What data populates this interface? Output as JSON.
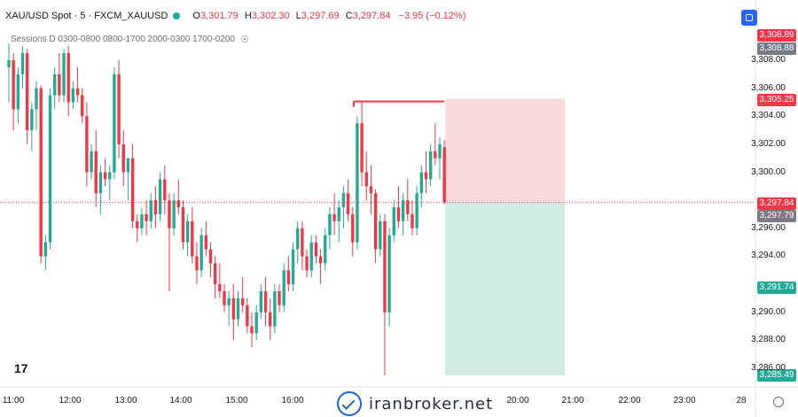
{
  "legend": {
    "symbol": "XAU/USD Spot · 5 · FXCM_XAUUSD",
    "o_label": "O",
    "o": "3,301.79",
    "h_label": "H",
    "h": "3,302.30",
    "l_label": "L",
    "l": "3,297.69",
    "c_label": "C",
    "c": "3,297.84",
    "change": "−3.95 (−0.12%)"
  },
  "sessions_label": "Sessions D 0300-0800 0800-1700 2000-0300 1700-0200",
  "watermark": "iranbroker.net",
  "tv_logo": "17",
  "colors": {
    "up": "#22ab94",
    "down": "#f23645",
    "stop_zone": "#f9d3d6",
    "target_zone": "#c9e8e1"
  },
  "price_tags": [
    {
      "value": "3,308.89",
      "color": "#f23645"
    },
    {
      "value": "3,308.88",
      "color": "#787b86"
    },
    {
      "value": "3,305.25",
      "color": "#f23645"
    },
    {
      "value": "3,297.84",
      "color": "#f23645"
    },
    {
      "value": "3,297.79",
      "color": "#787b86"
    },
    {
      "value": "3,291.74",
      "color": "#22ab94"
    },
    {
      "value": "3,285.49",
      "color": "#22ab94"
    }
  ],
  "chart_data": {
    "type": "candlestick",
    "y_ticks": [
      "3,308.00",
      "3,306.00",
      "3,304.00",
      "3,302.00",
      "3,300.00",
      "3,296.00",
      "3,294.00",
      "3,290.00",
      "3,288.00",
      "3,286.00"
    ],
    "y_tick_values": [
      3308,
      3306,
      3304,
      3302,
      3300,
      3296,
      3294,
      3290,
      3288,
      3286
    ],
    "x_ticks": [
      "11:00",
      "12:00",
      "13:00",
      "14:00",
      "15:00",
      "16:00",
      "20:00",
      "21:00",
      "22:00",
      "23:00",
      "28"
    ],
    "ylim": [
      3285,
      3310.5
    ],
    "current_price": 3297.84,
    "short_position": {
      "entry": 3297.84,
      "stop": 3305.25,
      "target": 3285.49,
      "stop_line": 3305.05
    },
    "candles": [
      [
        3307.5,
        3309.2,
        3305.0,
        3308.0
      ],
      [
        3308.0,
        3308.5,
        3303.0,
        3304.5
      ],
      [
        3304.5,
        3307.5,
        3303.5,
        3307.0
      ],
      [
        3307.0,
        3309.0,
        3306.0,
        3308.5
      ],
      [
        3308.5,
        3308.8,
        3302.0,
        3303.0
      ],
      [
        3303.0,
        3305.0,
        3301.5,
        3304.5
      ],
      [
        3304.5,
        3306.5,
        3303.0,
        3306.0
      ],
      [
        3306.0,
        3306.2,
        3293.5,
        3294.0
      ],
      [
        3294.0,
        3295.5,
        3293.0,
        3295.0
      ],
      [
        3295.0,
        3306.0,
        3294.5,
        3305.5
      ],
      [
        3305.5,
        3307.5,
        3304.5,
        3307.0
      ],
      [
        3307.0,
        3308.5,
        3305.0,
        3305.5
      ],
      [
        3305.5,
        3308.8,
        3305.0,
        3308.5
      ],
      [
        3308.5,
        3309.0,
        3304.0,
        3305.0
      ],
      [
        3305.0,
        3306.5,
        3304.5,
        3306.0
      ],
      [
        3306.0,
        3307.5,
        3305.0,
        3305.5
      ],
      [
        3305.5,
        3306.0,
        3303.5,
        3304.0
      ],
      [
        3304.0,
        3305.0,
        3299.0,
        3300.0
      ],
      [
        3300.0,
        3302.0,
        3299.5,
        3301.5
      ],
      [
        3301.5,
        3303.0,
        3297.5,
        3298.5
      ],
      [
        3298.5,
        3300.5,
        3297.0,
        3300.0
      ],
      [
        3300.0,
        3301.0,
        3299.0,
        3299.5
      ],
      [
        3299.5,
        3300.5,
        3298.0,
        3300.0
      ],
      [
        3300.0,
        3307.5,
        3299.5,
        3307.0
      ],
      [
        3307.0,
        3308.0,
        3301.0,
        3302.0
      ],
      [
        3302.0,
        3303.0,
        3299.0,
        3300.0
      ],
      [
        3300.0,
        3301.0,
        3298.0,
        3301.0
      ],
      [
        3301.0,
        3302.0,
        3296.0,
        3296.5
      ],
      [
        3296.5,
        3297.0,
        3295.0,
        3296.0
      ],
      [
        3296.0,
        3297.5,
        3295.5,
        3297.0
      ],
      [
        3297.0,
        3298.0,
        3295.5,
        3296.5
      ],
      [
        3296.5,
        3298.5,
        3296.0,
        3298.0
      ],
      [
        3298.0,
        3299.0,
        3296.0,
        3297.0
      ],
      [
        3297.0,
        3300.0,
        3296.5,
        3299.5
      ],
      [
        3299.5,
        3300.5,
        3297.0,
        3298.0
      ],
      [
        3298.0,
        3298.5,
        3291.5,
        3296.0
      ],
      [
        3296.0,
        3298.5,
        3295.5,
        3298.0
      ],
      [
        3298.0,
        3299.5,
        3297.0,
        3297.5
      ],
      [
        3297.5,
        3298.0,
        3294.5,
        3295.0
      ],
      [
        3295.0,
        3297.0,
        3294.0,
        3296.5
      ],
      [
        3296.5,
        3297.5,
        3293.5,
        3294.0
      ],
      [
        3294.0,
        3295.0,
        3292.0,
        3293.0
      ],
      [
        3293.0,
        3296.0,
        3292.5,
        3295.5
      ],
      [
        3295.5,
        3296.5,
        3294.0,
        3294.5
      ],
      [
        3294.5,
        3295.0,
        3292.5,
        3293.5
      ],
      [
        3293.5,
        3294.0,
        3291.0,
        3292.0
      ],
      [
        3292.0,
        3293.5,
        3291.0,
        3291.5
      ],
      [
        3291.5,
        3292.0,
        3290.0,
        3290.5
      ],
      [
        3290.5,
        3291.5,
        3289.0,
        3291.0
      ],
      [
        3291.0,
        3292.0,
        3288.0,
        3289.5
      ],
      [
        3289.5,
        3291.5,
        3289.0,
        3291.0
      ],
      [
        3291.0,
        3292.5,
        3290.0,
        3290.5
      ],
      [
        3290.5,
        3291.0,
        3288.5,
        3289.0
      ],
      [
        3289.0,
        3290.0,
        3287.5,
        3288.5
      ],
      [
        3288.5,
        3290.5,
        3288.0,
        3290.0
      ],
      [
        3290.0,
        3292.0,
        3289.5,
        3291.5
      ],
      [
        3291.5,
        3292.5,
        3289.0,
        3290.0
      ],
      [
        3290.0,
        3291.0,
        3288.0,
        3289.0
      ],
      [
        3289.0,
        3292.0,
        3288.5,
        3291.5
      ],
      [
        3291.5,
        3292.0,
        3290.0,
        3290.5
      ],
      [
        3290.5,
        3293.5,
        3290.0,
        3293.0
      ],
      [
        3293.0,
        3294.0,
        3291.5,
        3292.0
      ],
      [
        3292.0,
        3295.0,
        3291.5,
        3294.5
      ],
      [
        3294.5,
        3296.5,
        3293.5,
        3296.0
      ],
      [
        3296.0,
        3296.5,
        3293.0,
        3294.0
      ],
      [
        3294.0,
        3294.5,
        3292.5,
        3293.0
      ],
      [
        3293.0,
        3295.5,
        3292.5,
        3295.0
      ],
      [
        3295.0,
        3295.5,
        3293.5,
        3294.0
      ],
      [
        3294.0,
        3294.5,
        3292.0,
        3293.5
      ],
      [
        3293.5,
        3296.0,
        3293.0,
        3295.5
      ],
      [
        3295.5,
        3297.5,
        3294.5,
        3297.0
      ],
      [
        3297.0,
        3298.5,
        3295.5,
        3296.5
      ],
      [
        3296.5,
        3298.0,
        3295.0,
        3297.5
      ],
      [
        3297.5,
        3299.0,
        3296.0,
        3298.5
      ],
      [
        3298.5,
        3299.5,
        3296.5,
        3297.0
      ],
      [
        3297.0,
        3297.5,
        3294.0,
        3295.0
      ],
      [
        3295.0,
        3304.0,
        3294.5,
        3303.5
      ],
      [
        3303.5,
        3305.0,
        3299.0,
        3300.0
      ],
      [
        3300.0,
        3301.5,
        3298.0,
        3299.0
      ],
      [
        3299.0,
        3300.5,
        3297.0,
        3298.5
      ],
      [
        3298.5,
        3298.8,
        3293.5,
        3294.5
      ],
      [
        3294.5,
        3297.0,
        3294.0,
        3296.5
      ],
      [
        3296.5,
        3297.0,
        3285.5,
        3290.0
      ],
      [
        3290.0,
        3296.0,
        3289.0,
        3295.5
      ],
      [
        3295.5,
        3298.0,
        3295.0,
        3297.5
      ],
      [
        3297.5,
        3299.0,
        3296.0,
        3296.5
      ],
      [
        3296.5,
        3298.5,
        3295.5,
        3298.0
      ],
      [
        3298.0,
        3299.5,
        3296.5,
        3297.0
      ],
      [
        3297.0,
        3298.0,
        3295.5,
        3296.0
      ],
      [
        3296.0,
        3299.0,
        3295.5,
        3298.5
      ],
      [
        3298.5,
        3300.5,
        3297.5,
        3300.0
      ],
      [
        3300.0,
        3301.5,
        3298.5,
        3299.5
      ],
      [
        3299.5,
        3302.0,
        3299.0,
        3301.5
      ],
      [
        3301.5,
        3303.5,
        3300.5,
        3301.0
      ],
      [
        3301.0,
        3302.5,
        3299.5,
        3302.0
      ],
      [
        3301.79,
        3302.3,
        3297.69,
        3297.84
      ]
    ]
  }
}
